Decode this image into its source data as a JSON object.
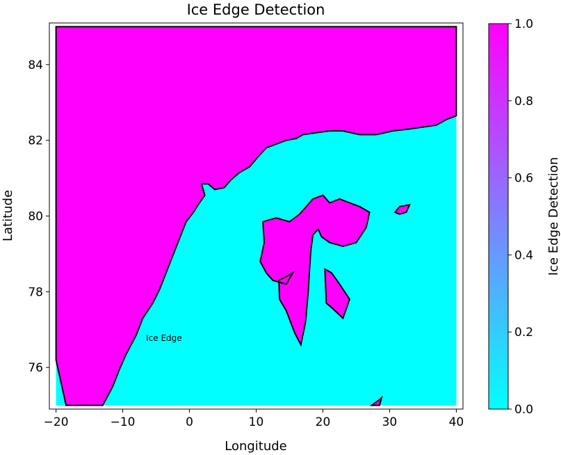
{
  "chart_data": {
    "type": "heatmap",
    "title": "Ice Edge Detection",
    "xlabel": "Longitude",
    "ylabel": "Latitude",
    "xlim": [
      -21,
      41
    ],
    "ylim": [
      74.9,
      85.1
    ],
    "x_ticks": [
      -20,
      -10,
      0,
      10,
      20,
      30,
      40
    ],
    "y_ticks": [
      76,
      78,
      80,
      82,
      84
    ],
    "data_extent": {
      "x": [
        -20,
        40
      ],
      "y": [
        75,
        85
      ]
    },
    "colormap": "cool",
    "color_low": "#00ffff",
    "color_high": "#ff00ff",
    "colorbar": {
      "label": "Ice Edge Detection",
      "range": [
        0.0,
        1.0
      ],
      "ticks": [
        0.0,
        0.2,
        0.4,
        0.6,
        0.8,
        1.0
      ],
      "tick_labels": [
        "0.0",
        "0.2",
        "0.4",
        "0.6",
        "0.8",
        "1.0"
      ]
    },
    "annotation": {
      "text": "Ice Edge",
      "x": -6.5,
      "y": 76.7
    },
    "edge_color": "#000000",
    "regions": [
      {
        "value": 1,
        "points": [
          [
            -20,
            85
          ],
          [
            40,
            85
          ],
          [
            40,
            82.65
          ],
          [
            38,
            82.5
          ],
          [
            36,
            82.35
          ],
          [
            34,
            82.32
          ],
          [
            32,
            82.25
          ],
          [
            30,
            82.2
          ],
          [
            28,
            82.18
          ],
          [
            26,
            82.12
          ],
          [
            24,
            82.2
          ],
          [
            22,
            82.25
          ],
          [
            20,
            82.2
          ],
          [
            18,
            82.15
          ],
          [
            16,
            82.05
          ],
          [
            14,
            81.95
          ],
          [
            16,
            82.05
          ],
          [
            15,
            81.95
          ],
          [
            16,
            82.05
          ],
          [
            16,
            82.05
          ],
          [
            16,
            82.05
          ],
          [
            14,
            81.95
          ],
          [
            16,
            82.05
          ],
          [
            16,
            82.05
          ],
          [
            16,
            82.05
          ]
        ]
      }
    ],
    "ice_pack_boundary": [
      [
        -20,
        85
      ],
      [
        40,
        85
      ],
      [
        40,
        82.65
      ],
      [
        38.5,
        82.55
      ],
      [
        37,
        82.4
      ],
      [
        35,
        82.35
      ],
      [
        33,
        82.3
      ],
      [
        30.5,
        82.25
      ],
      [
        28,
        82.15
      ],
      [
        25.5,
        82.15
      ],
      [
        23,
        82.25
      ],
      [
        21,
        82.25
      ],
      [
        19,
        82.2
      ],
      [
        17,
        82.15
      ],
      [
        15.5,
        82.05
      ],
      [
        16,
        82.05
      ],
      [
        15.5,
        82.05
      ],
      [
        16,
        82.05
      ],
      [
        16,
        82.05
      ]
    ],
    "ice_pack": [
      [
        -20,
        85
      ],
      [
        40,
        85
      ],
      [
        40,
        82.65
      ],
      [
        38.5,
        82.55
      ],
      [
        37,
        82.4
      ],
      [
        35,
        82.35
      ],
      [
        33,
        82.3
      ],
      [
        30.5,
        82.25
      ],
      [
        28,
        82.15
      ],
      [
        25.5,
        82.15
      ],
      [
        23,
        82.25
      ],
      [
        21,
        82.25
      ],
      [
        19,
        82.2
      ],
      [
        17,
        82.15
      ],
      [
        15.5,
        82.05
      ],
      [
        15.8,
        81.95
      ],
      [
        16,
        82.05
      ]
    ],
    "ice_pack_main": [
      [
        -20,
        85
      ],
      [
        40,
        85
      ],
      [
        40,
        82.65
      ],
      [
        38.5,
        82.55
      ],
      [
        37,
        82.4
      ],
      [
        35,
        82.35
      ],
      [
        33,
        82.3
      ],
      [
        30.5,
        82.25
      ],
      [
        28,
        82.15
      ],
      [
        25.5,
        82.15
      ],
      [
        23,
        82.25
      ],
      [
        21,
        82.25
      ],
      [
        19,
        82.2
      ],
      [
        17,
        82.15
      ],
      [
        16,
        82.05
      ],
      [
        14.5,
        82
      ],
      [
        13,
        81.9
      ],
      [
        11.5,
        81.8
      ],
      [
        10.2,
        81.55
      ],
      [
        9,
        81.3
      ],
      [
        7.5,
        81.15
      ],
      [
        6.2,
        80.95
      ],
      [
        5.2,
        80.75
      ],
      [
        3.8,
        80.7
      ],
      [
        2.8,
        80.85
      ],
      [
        1.8,
        80.85
      ],
      [
        2.3,
        80.55
      ],
      [
        1.5,
        80.35
      ],
      [
        0.6,
        80.1
      ],
      [
        -0.5,
        79.85
      ],
      [
        -1.5,
        79.4
      ],
      [
        -2.5,
        78.95
      ],
      [
        -3.5,
        78.5
      ],
      [
        -4.5,
        78.05
      ],
      [
        -5.5,
        77.7
      ],
      [
        -7,
        77.3
      ],
      [
        -8,
        76.85
      ],
      [
        -9.5,
        76.35
      ],
      [
        -10.5,
        75.95
      ],
      [
        -11.5,
        75.5
      ],
      [
        -13,
        75
      ],
      [
        -18.5,
        75
      ],
      [
        -20,
        76.2
      ]
    ],
    "islands": [
      [
        [
          11,
          79.85
        ],
        [
          13,
          79.95
        ],
        [
          15,
          79.85
        ],
        [
          16.5,
          80.05
        ],
        [
          18.5,
          80.45
        ],
        [
          20,
          80.55
        ],
        [
          21,
          80.35
        ],
        [
          22.5,
          80.45
        ],
        [
          24,
          80.35
        ],
        [
          25.5,
          80.25
        ],
        [
          27,
          80.1
        ],
        [
          26.5,
          79.7
        ],
        [
          25,
          79.3
        ],
        [
          23,
          79.2
        ],
        [
          21,
          79.3
        ],
        [
          19.8,
          79.45
        ],
        [
          19.3,
          79.65
        ],
        [
          18.5,
          79.5
        ],
        [
          18.2,
          79.1
        ],
        [
          18,
          78.6
        ],
        [
          17.8,
          78
        ],
        [
          17.4,
          77.2
        ],
        [
          16.7,
          76.6
        ],
        [
          15.8,
          76.9
        ],
        [
          14.5,
          77.5
        ],
        [
          13.5,
          77.8
        ],
        [
          13.4,
          78.3
        ],
        [
          14.5,
          78.4
        ],
        [
          15.5,
          78.5
        ],
        [
          14.5,
          78.2
        ],
        [
          12.5,
          78.3
        ],
        [
          11.5,
          78.5
        ],
        [
          10.6,
          78.8
        ],
        [
          11.2,
          79.3
        ]
      ],
      [
        [
          20.3,
          78.6
        ],
        [
          21.3,
          78.5
        ],
        [
          22.5,
          78.2
        ],
        [
          24,
          77.8
        ],
        [
          23,
          77.3
        ],
        [
          21.5,
          77.55
        ],
        [
          20.5,
          77.7
        ]
      ],
      [
        [
          30.8,
          80.1
        ],
        [
          31.5,
          80.25
        ],
        [
          33,
          80.3
        ],
        [
          32.5,
          80.1
        ],
        [
          31.5,
          80.05
        ]
      ],
      [
        [
          27.3,
          75
        ],
        [
          28.5,
          75.15
        ],
        [
          28.8,
          75.2
        ],
        [
          28.5,
          75
        ]
      ]
    ]
  }
}
